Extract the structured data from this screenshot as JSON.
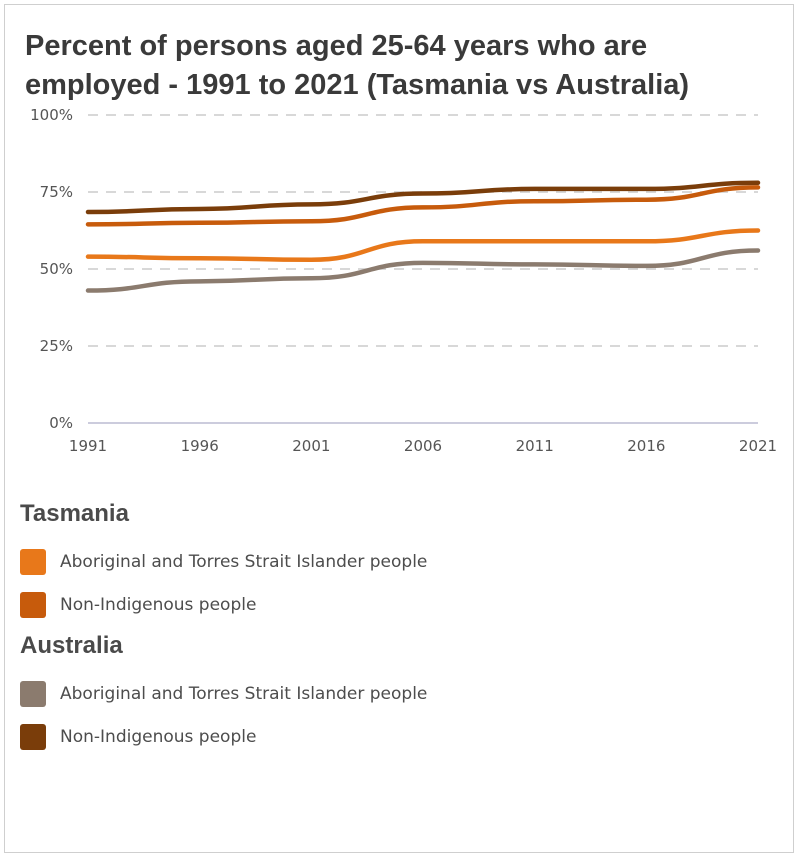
{
  "title": "Percent of persons aged 25-64 years who are employed - 1991 to 2021 (Tasmania vs Australia)",
  "colors": {
    "tas_aboriginal": "#e8781a",
    "tas_nonindigenous": "#c75b0c",
    "aus_aboriginal": "#8b7b6e",
    "aus_nonindigenous": "#7a3d0a",
    "grid": "#cccccc",
    "axis": "#ccccdd"
  },
  "legend": {
    "groups": [
      {
        "title": "Tasmania",
        "items": [
          {
            "label": "Aboriginal and Torres Strait Islander people",
            "color": "#e8781a"
          },
          {
            "label": "Non-Indigenous people",
            "color": "#c75b0c"
          }
        ]
      },
      {
        "title": "Australia",
        "items": [
          {
            "label": "Aboriginal and Torres Strait Islander people",
            "color": "#8b7b6e"
          },
          {
            "label": "Non-Indigenous people",
            "color": "#7a3d0a"
          }
        ]
      }
    ]
  },
  "chart_data": {
    "type": "line",
    "x": [
      1991,
      1996,
      2001,
      2006,
      2011,
      2016,
      2021
    ],
    "x_tick_labels": [
      "1991",
      "1996",
      "2001",
      "2006",
      "2011",
      "2016",
      "2021"
    ],
    "y_tick_labels": [
      "0%",
      "25%",
      "50%",
      "75%",
      "100%"
    ],
    "y_ticks": [
      0,
      25,
      50,
      75,
      100
    ],
    "ylim": [
      0,
      100
    ],
    "grid": true,
    "series": [
      {
        "name": "Aboriginal and Torres Strait Islander people",
        "group": "Australia",
        "color": "#8b7b6e",
        "values": [
          43,
          46,
          47,
          52,
          51.5,
          51,
          56
        ]
      },
      {
        "name": "Aboriginal and Torres Strait Islander people",
        "group": "Tasmania",
        "color": "#e8781a",
        "values": [
          54,
          53.5,
          53,
          59,
          59,
          59,
          62.5
        ]
      },
      {
        "name": "Non-Indigenous people",
        "group": "Tasmania",
        "color": "#c75b0c",
        "values": [
          64.5,
          65,
          65.5,
          70,
          72,
          72.5,
          76.5
        ]
      },
      {
        "name": "Non-Indigenous people",
        "group": "Australia",
        "color": "#7a3d0a",
        "values": [
          68.5,
          69.5,
          71,
          74.5,
          76,
          76,
          78
        ]
      }
    ]
  }
}
